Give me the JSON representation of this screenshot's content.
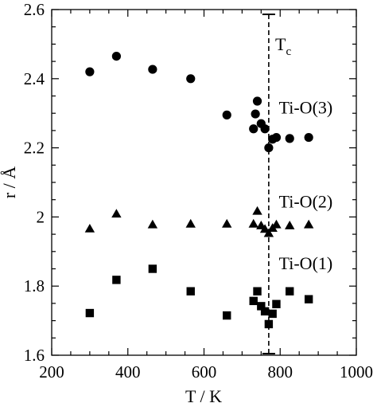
{
  "chart_data": {
    "type": "scatter",
    "xlabel": "T / K",
    "ylabel": "r / Å",
    "xlim": [
      200,
      1000
    ],
    "ylim": [
      1.6,
      2.6
    ],
    "xticks": [
      200,
      400,
      600,
      800,
      1000
    ],
    "yticks": [
      1.6,
      1.8,
      2,
      2.2,
      2.4,
      2.6
    ],
    "ytick_labels": [
      "1.6",
      "1.8",
      "2",
      "2.2",
      "2.4",
      "2.6"
    ],
    "grid": false,
    "tc": {
      "x": 770,
      "label": "T",
      "sub": "c"
    },
    "series": [
      {
        "name": "Ti-O(3)",
        "marker": "circle",
        "points": [
          [
            300,
            2.42
          ],
          [
            370,
            2.465
          ],
          [
            465,
            2.427
          ],
          [
            565,
            2.4
          ],
          [
            660,
            2.295
          ],
          [
            730,
            2.255
          ],
          [
            735,
            2.298
          ],
          [
            740,
            2.335
          ],
          [
            750,
            2.27
          ],
          [
            760,
            2.255
          ],
          [
            770,
            2.2
          ],
          [
            780,
            2.225
          ],
          [
            790,
            2.23
          ],
          [
            825,
            2.227
          ],
          [
            875,
            2.23
          ]
        ]
      },
      {
        "name": "Ti-O(2)",
        "marker": "triangle",
        "points": [
          [
            300,
            1.966
          ],
          [
            370,
            2.009
          ],
          [
            465,
            1.978
          ],
          [
            565,
            1.98
          ],
          [
            660,
            1.98
          ],
          [
            730,
            1.98
          ],
          [
            740,
            2.017
          ],
          [
            750,
            1.975
          ],
          [
            760,
            1.965
          ],
          [
            770,
            1.953
          ],
          [
            780,
            1.968
          ],
          [
            790,
            1.978
          ],
          [
            825,
            1.975
          ],
          [
            875,
            1.978
          ]
        ]
      },
      {
        "name": "Ti-O(1)",
        "marker": "square",
        "points": [
          [
            300,
            1.722
          ],
          [
            370,
            1.818
          ],
          [
            465,
            1.85
          ],
          [
            565,
            1.785
          ],
          [
            660,
            1.715
          ],
          [
            730,
            1.757
          ],
          [
            740,
            1.785
          ],
          [
            750,
            1.742
          ],
          [
            760,
            1.727
          ],
          [
            770,
            1.69
          ],
          [
            780,
            1.72
          ],
          [
            790,
            1.748
          ],
          [
            825,
            1.785
          ],
          [
            875,
            1.762
          ]
        ]
      }
    ],
    "annotations": [
      {
        "text": "Ti-O(3)",
        "x": 855,
        "y": 2.318
      },
      {
        "text": "Ti-O(2)",
        "x": 855,
        "y": 2.046
      },
      {
        "text": "Ti-O(1)",
        "x": 855,
        "y": 1.867
      }
    ]
  }
}
